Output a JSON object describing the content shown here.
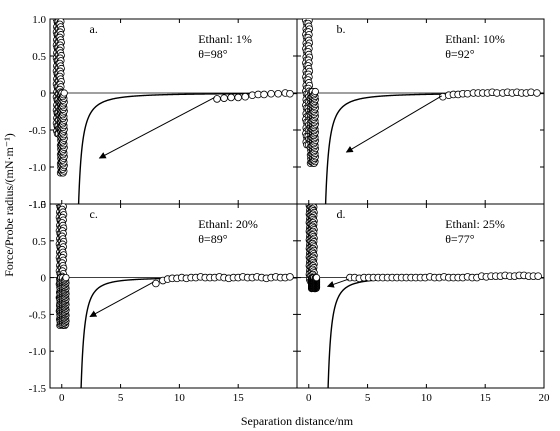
{
  "figure": {
    "ylabel": "Force/Probe radius/(mN·m⁻¹)",
    "xlabel": "Separation distance/nm"
  },
  "chart_data": [
    {
      "type": "scatter",
      "panel_label": "a.",
      "text_lines": [
        "Ethanl: 1%",
        "θ=98°"
      ],
      "xlim": [
        -1,
        20
      ],
      "ylim": [
        -1.5,
        1.0
      ],
      "xticks": [
        0,
        5,
        10,
        15,
        20
      ],
      "xtick_labels": [
        "",
        "",
        "",
        "",
        ""
      ],
      "yticks": [
        1.0,
        0.5,
        0,
        -0.5,
        -1.0,
        -1.5
      ],
      "ytick_labels": [
        "1.0",
        "0.5",
        "0",
        "-0.5",
        "-1.0",
        "-1.5"
      ],
      "grid": false,
      "zero_line": true,
      "curve": {
        "c": 0.5,
        "r": 1.5,
        "x0": 0.95
      },
      "loading_branch": {
        "x": [
          -0.4,
          -0.25,
          -0.1
        ],
        "y_from": 1.0,
        "y_to": -0.55
      },
      "unloading_branch": {
        "x": [
          -0.05,
          0.05,
          0.15
        ],
        "y_from": -1.08,
        "y_to": 0.0
      },
      "plateau": {
        "x": [
          13.2,
          13.8,
          14.4,
          15.0,
          15.6,
          16.2,
          16.7,
          17.2,
          17.8,
          18.4,
          19.0,
          19.4
        ],
        "y": [
          -0.08,
          -0.07,
          -0.06,
          -0.06,
          -0.05,
          -0.03,
          -0.02,
          -0.02,
          -0.01,
          -0.01,
          0.0,
          -0.01
        ]
      },
      "arrow": {
        "from": [
          13.0,
          -0.06
        ],
        "to": [
          3.2,
          -0.88
        ]
      }
    },
    {
      "type": "scatter",
      "panel_label": "b.",
      "text_lines": [
        "Ethanl: 10%",
        "θ=92°"
      ],
      "xlim": [
        -1,
        20
      ],
      "ylim": [
        -1.5,
        1.0
      ],
      "xticks": [
        0,
        5,
        10,
        15,
        20
      ],
      "xtick_labels": [
        "",
        "",
        "",
        "",
        ""
      ],
      "yticks": [
        1.0,
        0.5,
        0,
        -0.5,
        -1.0,
        -1.5
      ],
      "ytick_labels": [
        "",
        "",
        "",
        "",
        "",
        ""
      ],
      "grid": false,
      "zero_line": true,
      "curve": {
        "c": 0.5,
        "r": 1.5,
        "x0": 0.95
      },
      "loading_branch": {
        "x": [
          -0.2,
          0.0
        ],
        "y_from": 0.98,
        "y_to": -0.7
      },
      "unloading_branch": {
        "x": [
          0.2,
          0.35,
          0.5
        ],
        "y_from": -0.95,
        "y_to": 0.02
      },
      "plateau": {
        "x": [
          11.4,
          11.9,
          12.3,
          12.7,
          13.1,
          13.5,
          14.0,
          14.4,
          14.8,
          15.2,
          15.6,
          16.0,
          16.5,
          16.9,
          17.3,
          17.7,
          18.1,
          18.5,
          18.9,
          19.4
        ],
        "y": [
          -0.05,
          -0.03,
          -0.02,
          -0.02,
          -0.01,
          -0.01,
          0.0,
          0.0,
          0.0,
          0.0,
          0.01,
          0.0,
          0.0,
          0.01,
          0.0,
          0.01,
          0.0,
          0.0,
          0.01,
          0.0
        ]
      },
      "arrow": {
        "from": [
          11.3,
          -0.04
        ],
        "to": [
          3.2,
          -0.8
        ]
      }
    },
    {
      "type": "scatter",
      "panel_label": "c.",
      "text_lines": [
        "Ethanl: 20%",
        "θ=89°"
      ],
      "xlim": [
        -1,
        20
      ],
      "ylim": [
        -1.5,
        1.0
      ],
      "xticks": [
        0,
        5,
        10,
        15,
        20
      ],
      "xtick_labels": [
        "0",
        "5",
        "10",
        "15",
        ""
      ],
      "yticks": [
        1.0,
        0.5,
        0,
        -0.5,
        -1.0,
        -1.5
      ],
      "ytick_labels": [
        "1.0",
        "0.5",
        "0",
        "-0.5",
        "-1.0",
        "-1.5"
      ],
      "grid": false,
      "zero_line": true,
      "curve": {
        "c": 0.5,
        "r": 1.8,
        "x0": 1.1
      },
      "loading_branch": {
        "x": [
          -0.15,
          0.0,
          0.1
        ],
        "y_from": 1.0,
        "y_to": -0.6
      },
      "unloading_branch": {
        "x": [
          -0.1,
          0.1,
          0.3
        ],
        "y_from": -0.65,
        "y_to": 0.0
      },
      "plateau": {
        "x": [
          8.0,
          8.6,
          9.0,
          9.4,
          9.8,
          10.2,
          10.6,
          11.0,
          11.4,
          11.8,
          12.2,
          12.6,
          13.0,
          13.4,
          13.8,
          14.2,
          14.6,
          15.0,
          15.4,
          15.8,
          16.2,
          16.6,
          17.0,
          17.4,
          17.8,
          18.2,
          18.6,
          19.0,
          19.4
        ],
        "y": [
          -0.08,
          -0.04,
          -0.02,
          -0.01,
          -0.01,
          0.0,
          -0.01,
          0.0,
          0.0,
          0.01,
          0.0,
          0.0,
          0.0,
          0.01,
          0.0,
          -0.01,
          0.0,
          0.0,
          0.01,
          0.0,
          0.0,
          0.01,
          0.0,
          -0.01,
          0.0,
          0.01,
          0.0,
          0.0,
          0.01
        ]
      },
      "arrow": {
        "from": [
          7.8,
          -0.06
        ],
        "to": [
          2.4,
          -0.53
        ]
      }
    },
    {
      "type": "scatter",
      "panel_label": "d.",
      "text_lines": [
        "Ethanl: 25%",
        "θ=77°"
      ],
      "xlim": [
        -1,
        20
      ],
      "ylim": [
        -1.5,
        1.0
      ],
      "xticks": [
        0,
        5,
        10,
        15,
        20
      ],
      "xtick_labels": [
        "0",
        "5",
        "10",
        "15",
        "20"
      ],
      "yticks": [
        1.0,
        0.5,
        0,
        -0.5,
        -1.0,
        -1.5
      ],
      "ytick_labels": [
        "",
        "",
        "",
        "",
        "",
        ""
      ],
      "grid": false,
      "zero_line": true,
      "curve": {
        "c": 0.45,
        "r": 1.7,
        "x0": 1.15
      },
      "loading_branch": {
        "x": [
          0.1,
          0.25,
          0.4
        ],
        "y_from": 0.98,
        "y_to": -0.05
      },
      "unloading_branch": {
        "x": [
          0.3,
          0.45,
          0.6
        ],
        "y_from": -0.15,
        "y_to": 0.0
      },
      "plateau": {
        "x": [
          3.5,
          3.9,
          4.3,
          4.7,
          5.1,
          5.5,
          5.9,
          6.3,
          6.7,
          7.1,
          7.5,
          7.9,
          8.3,
          8.7,
          9.1,
          9.5,
          9.9,
          10.3,
          10.7,
          11.1,
          11.5,
          11.9,
          12.3,
          12.7,
          13.1,
          13.5,
          13.9,
          14.3,
          14.7,
          15.1,
          15.5,
          15.9,
          16.3,
          16.7,
          17.1,
          17.5,
          17.9,
          18.3,
          18.7,
          19.1,
          19.5
        ],
        "y": [
          0.0,
          0.0,
          -0.01,
          0.0,
          0.0,
          0.0,
          0.0,
          0.0,
          0.0,
          0.0,
          0.0,
          0.0,
          0.0,
          0.0,
          0.0,
          0.0,
          0.0,
          0.01,
          0.0,
          0.0,
          0.01,
          0.0,
          0.0,
          0.0,
          0.0,
          0.01,
          0.0,
          0.0,
          0.02,
          0.01,
          0.02,
          0.02,
          0.02,
          0.03,
          0.02,
          0.02,
          0.03,
          0.03,
          0.02,
          0.02,
          0.02
        ]
      },
      "arrow": {
        "from": [
          3.4,
          -0.02
        ],
        "to": [
          1.6,
          -0.12
        ]
      }
    }
  ]
}
